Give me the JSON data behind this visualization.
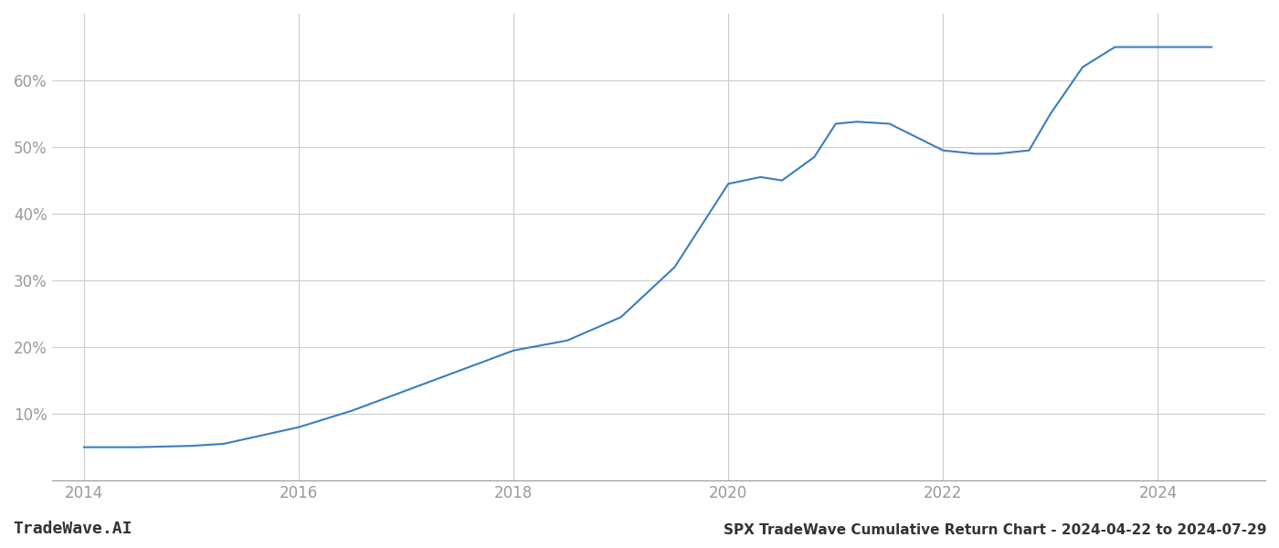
{
  "x_years": [
    2014,
    2014.5,
    2015,
    2015.3,
    2016,
    2016.5,
    2017,
    2017.5,
    2018,
    2018.5,
    2019,
    2019.5,
    2020,
    2020.3,
    2020.5,
    2020.8,
    2021,
    2021.2,
    2021.5,
    2022,
    2022.3,
    2022.5,
    2022.8,
    2023,
    2023.3,
    2023.6,
    2024,
    2024.5
  ],
  "y_values": [
    5.0,
    5.0,
    5.2,
    5.5,
    8.0,
    10.5,
    13.5,
    16.5,
    19.5,
    21.0,
    24.5,
    32.0,
    44.5,
    45.5,
    45.0,
    48.5,
    53.5,
    53.8,
    53.5,
    49.5,
    49.0,
    49.0,
    49.5,
    55.0,
    62.0,
    65.0,
    65.0,
    65.0
  ],
  "line_color": "#3a7ebf",
  "line_width": 1.5,
  "background_color": "#ffffff",
  "grid_color": "#cccccc",
  "title": "SPX TradeWave Cumulative Return Chart - 2024-04-22 to 2024-07-29",
  "watermark": "TradeWave.AI",
  "x_ticks": [
    2014,
    2016,
    2018,
    2020,
    2022,
    2024
  ],
  "y_ticks": [
    10,
    20,
    30,
    40,
    50,
    60
  ],
  "xlim": [
    2013.7,
    2025.0
  ],
  "ylim": [
    0,
    70
  ],
  "tick_color": "#999999",
  "spine_color": "#999999",
  "title_fontsize": 11,
  "tick_fontsize": 12,
  "watermark_fontsize": 13
}
